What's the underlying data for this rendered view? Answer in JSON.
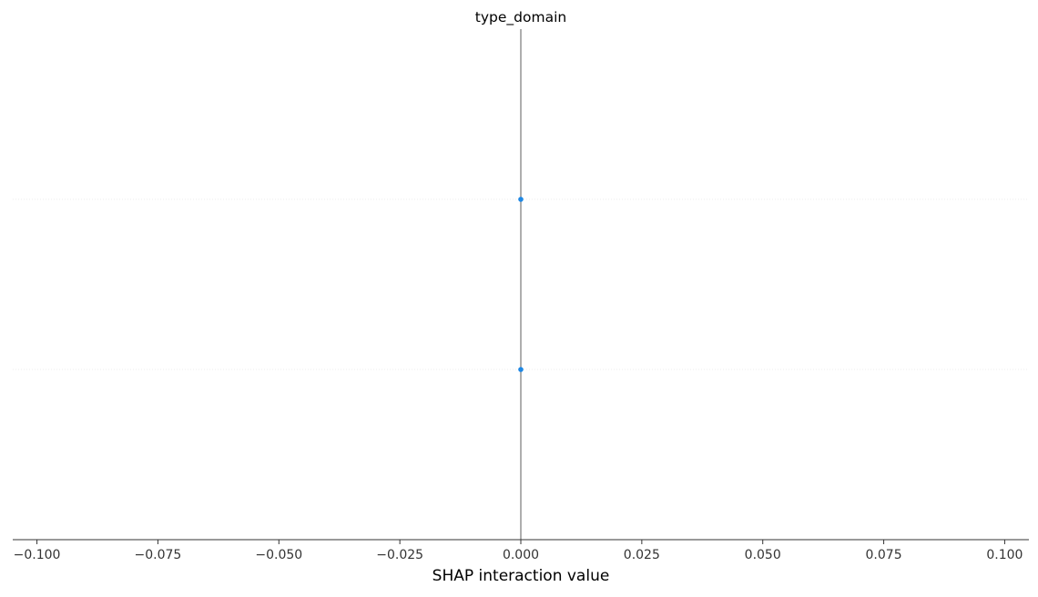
{
  "chart_data": {
    "type": "scatter",
    "title": "type_domain",
    "xlabel": "SHAP interaction value",
    "ylabel": "",
    "xlim": [
      -0.105,
      0.105
    ],
    "rows": 3,
    "xticks": [
      -0.1,
      -0.075,
      -0.05,
      -0.025,
      0.0,
      0.025,
      0.05,
      0.075,
      0.1
    ],
    "xtick_labels": [
      "−0.100",
      "−0.075",
      "−0.050",
      "−0.025",
      "0.000",
      "0.025",
      "0.050",
      "0.075",
      "0.100"
    ],
    "zero_line": true,
    "row_gridlines": [
      1,
      2
    ],
    "points": [
      {
        "row": 1,
        "x": 0.0
      },
      {
        "row": 2,
        "x": 0.0
      }
    ],
    "colors": {
      "point": "#1e88e5",
      "zero_line": "#999999",
      "row_grid": "#eeeeee",
      "axis": "#333333"
    }
  }
}
